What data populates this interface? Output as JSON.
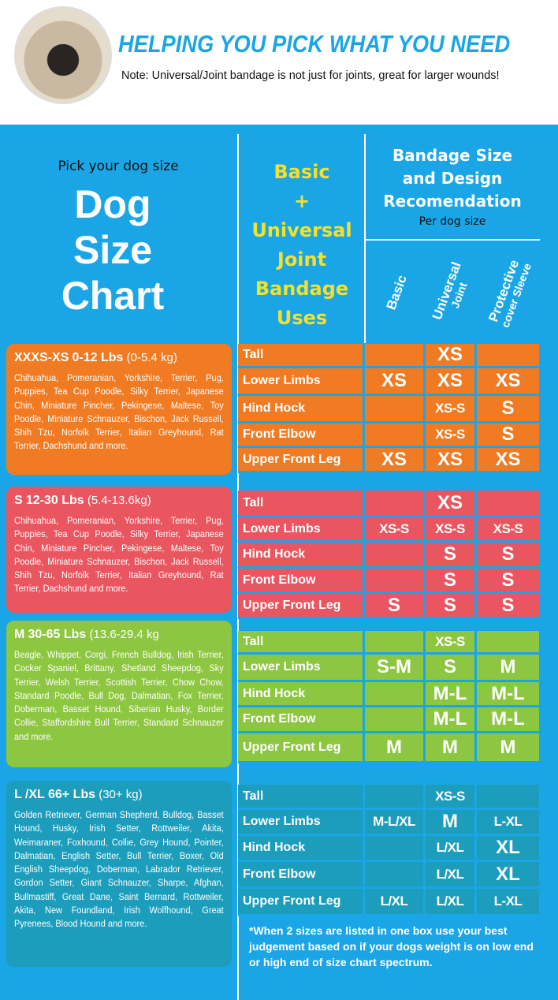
{
  "header": {
    "title": "HELPING YOU PICK WHAT YOU NEED",
    "note": "Note: Universal/Joint bandage is not just for joints, great for larger wounds!"
  },
  "left": {
    "pick": "Pick your dog size",
    "title_lines": [
      "Dog",
      "Size",
      "Chart"
    ]
  },
  "uses_header": [
    "Basic",
    "+",
    "Universal",
    "Joint",
    "Bandage",
    "Uses"
  ],
  "rec_header": {
    "title_lines": [
      "Bandage Size",
      "and Design",
      "Recomendation"
    ],
    "sub": "Per dog size"
  },
  "columns": [
    {
      "line1": "Basic",
      "line2": ""
    },
    {
      "line1": "Universal",
      "line2": "Joint"
    },
    {
      "line1": "Protective",
      "line2": "cover Sleeve"
    }
  ],
  "colors": {
    "background": "#1aa6e6",
    "xs": "#f07b23",
    "s": "#e95660",
    "m": "#8dc640",
    "lxl": "#1b9dbb"
  },
  "sizes": [
    {
      "size": "XXXS-XS",
      "lbs": "0-12 Lbs",
      "kg": "(0-5.4 kg)",
      "breeds": "Chihuahua, Pomeranian, Yorkshire, Terrier, Pug, Puppies, Tea Cup Poodle, Silky Terrier, Japanese Chin, Miniature Pincher, Pekingese, Maltese, Toy Poodle, Miniature Schnauzer, Bischon, Jack Russell, Shih Tzu, Norfolk Terrier, Italian Greyhound, Rat Terrier, Dachshund and more.",
      "rows": [
        [
          "Tall",
          "",
          "XS",
          ""
        ],
        [
          "Lower Limbs",
          "XS",
          "XS",
          "XS"
        ],
        [
          "Hind Hock",
          "",
          "XS-S",
          "S"
        ],
        [
          "Front Elbow",
          "",
          "XS-S",
          "S"
        ],
        [
          "Upper Front Leg",
          "XS",
          "XS",
          "XS"
        ]
      ]
    },
    {
      "size": "S",
      "lbs": "12-30 Lbs",
      "kg": "(5.4-13.6kg)",
      "breeds": "Chihuahua, Pomeranian, Yorkshire, Terrier, Pug, Puppies, Tea Cup Poodle, Silky Terrier, Japanese Chin, Miniature Pincher, Pekingese, Maltese, Toy Poodle, Miniature Schnauzer, Bischon, Jack Russell, Shih Tzu, Norfolk Terrier, Italian Greyhound, Rat Terrier, Dachshund and more.",
      "rows": [
        [
          "Tall",
          "",
          "XS",
          ""
        ],
        [
          "Lower Limbs",
          "XS-S",
          "XS-S",
          "XS-S"
        ],
        [
          "Hind Hock",
          "",
          "S",
          "S"
        ],
        [
          "Front Elbow",
          "",
          "S",
          "S"
        ],
        [
          "Upper Front Leg",
          "S",
          "S",
          "S"
        ]
      ]
    },
    {
      "size": "M",
      "lbs": "30-65 Lbs",
      "kg": "(13.6-29.4 kg",
      "breeds": "Beagle, Whippet, Corgi, French Bulldog, Irish Terrier, Cocker Spaniel, Brittany, Shetland Sheepdog, Sky Terrier, Welsh Terrier, Scottish Terrier, Chow Chow, Standard Poodle, Bull Dog, Dalmatian, Fox Terrier, Doberman, Basset Hound, Siberian Husky, Border Collie, Staffordshire Bull Terrier, Standard Schnauzer and more.",
      "rows": [
        [
          "Tall",
          "",
          "XS-S",
          ""
        ],
        [
          "Lower Limbs",
          "S-M",
          "S",
          "M"
        ],
        [
          "Hind Hock",
          "",
          "M-L",
          "M-L"
        ],
        [
          "Front Elbow",
          "",
          "M-L",
          "M-L"
        ],
        [
          "Upper Front Leg",
          "M",
          "M",
          "M"
        ]
      ]
    },
    {
      "size": "L /XL",
      "lbs": "66+ Lbs",
      "kg": "(30+ kg)",
      "breeds": "Golden Retriever, German Shepherd, Bulldog, Basset Hound, Husky, Irish Setter, Rottweiler, Akita, Weimaraner, Foxhound, Collie, Grey Hound, Pointer, Dalmatian, English Setter, Bull Terrier, Boxer, Old English Sheepdog, Doberman, Labrador Retriever, Gordon Setter, Giant Schnauzer, Sharpe, Afghan, Bullmastiff, Great Dane, Saint Bernard, Rottweiler, Akita, New Foundland, Irish Wolfhound, Great Pyrenees, Blood Hound and more.",
      "rows": [
        [
          "Tall",
          "",
          "XS-S",
          ""
        ],
        [
          "Lower Limbs",
          "M-L/XL",
          "M",
          "L-XL"
        ],
        [
          "Hind Hock",
          "",
          "L/XL",
          "XL"
        ],
        [
          "Front Elbow",
          "",
          "L/XL",
          "XL"
        ],
        [
          "Upper Front Leg",
          "L/XL",
          "L/XL",
          "L-XL"
        ]
      ]
    }
  ],
  "footnote": "*When 2 sizes are listed in one box use your best judgement based on if your dogs weight is on low end or high end of size chart spectrum."
}
